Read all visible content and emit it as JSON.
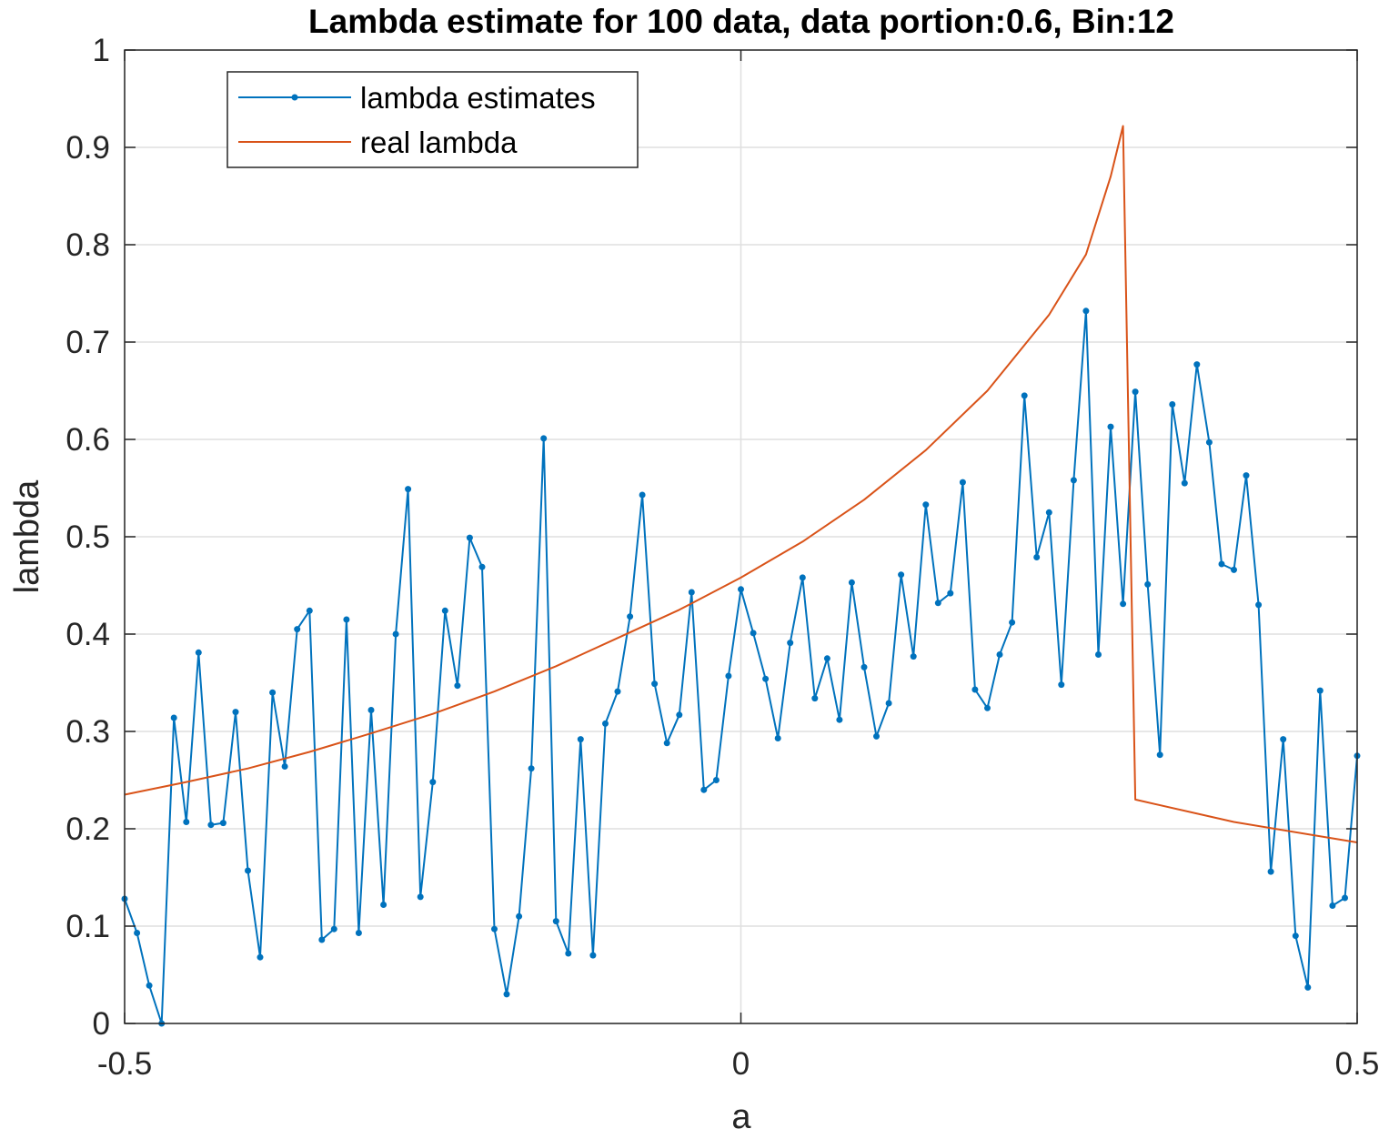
{
  "chart_data": {
    "type": "line",
    "title": "Lambda estimate for 100 data, data portion:0.6, Bin:12",
    "xlabel": "a",
    "ylabel": "lambda",
    "xlim": [
      -0.5,
      0.5
    ],
    "ylim": [
      0,
      1
    ],
    "xticks": [
      -0.5,
      0,
      0.5
    ],
    "xtick_labels": [
      "-0.5",
      "0",
      "0.5"
    ],
    "yticks": [
      0,
      0.1,
      0.2,
      0.3,
      0.4,
      0.5,
      0.6,
      0.7,
      0.8,
      0.9,
      1
    ],
    "ytick_labels": [
      "0",
      "0.1",
      "0.2",
      "0.3",
      "0.4",
      "0.5",
      "0.6",
      "0.7",
      "0.8",
      "0.9",
      "1"
    ],
    "grid": true,
    "legend_position": "top-left",
    "series": [
      {
        "name": "lambda estimates",
        "color": "#0072BD",
        "marker": "dot",
        "points": [
          [
            -0.5,
            0.128
          ],
          [
            -0.49,
            0.093
          ],
          [
            -0.48,
            0.039
          ],
          [
            -0.47,
            0.0
          ],
          [
            -0.46,
            0.314
          ],
          [
            -0.45,
            0.207
          ],
          [
            -0.44,
            0.381
          ],
          [
            -0.43,
            0.204
          ],
          [
            -0.42,
            0.206
          ],
          [
            -0.41,
            0.32
          ],
          [
            -0.4,
            0.157
          ],
          [
            -0.39,
            0.068
          ],
          [
            -0.38,
            0.34
          ],
          [
            -0.37,
            0.264
          ],
          [
            -0.36,
            0.405
          ],
          [
            -0.35,
            0.424
          ],
          [
            -0.34,
            0.086
          ],
          [
            -0.33,
            0.097
          ],
          [
            -0.32,
            0.415
          ],
          [
            -0.31,
            0.093
          ],
          [
            -0.3,
            0.322
          ],
          [
            -0.29,
            0.122
          ],
          [
            -0.28,
            0.4
          ],
          [
            -0.27,
            0.549
          ],
          [
            -0.26,
            0.13
          ],
          [
            -0.25,
            0.248
          ],
          [
            -0.24,
            0.424
          ],
          [
            -0.23,
            0.347
          ],
          [
            -0.22,
            0.499
          ],
          [
            -0.21,
            0.469
          ],
          [
            -0.2,
            0.097
          ],
          [
            -0.19,
            0.03
          ],
          [
            -0.18,
            0.11
          ],
          [
            -0.17,
            0.262
          ],
          [
            -0.16,
            0.601
          ],
          [
            -0.15,
            0.105
          ],
          [
            -0.14,
            0.072
          ],
          [
            -0.13,
            0.292
          ],
          [
            -0.12,
            0.07
          ],
          [
            -0.11,
            0.308
          ],
          [
            -0.1,
            0.341
          ],
          [
            -0.09,
            0.418
          ],
          [
            -0.08,
            0.543
          ],
          [
            -0.07,
            0.349
          ],
          [
            -0.06,
            0.288
          ],
          [
            -0.05,
            0.317
          ],
          [
            -0.04,
            0.443
          ],
          [
            -0.03,
            0.24
          ],
          [
            -0.02,
            0.25
          ],
          [
            -0.01,
            0.357
          ],
          [
            0.0,
            0.446
          ],
          [
            0.01,
            0.401
          ],
          [
            0.02,
            0.354
          ],
          [
            0.03,
            0.293
          ],
          [
            0.04,
            0.391
          ],
          [
            0.05,
            0.458
          ],
          [
            0.06,
            0.334
          ],
          [
            0.07,
            0.375
          ],
          [
            0.08,
            0.312
          ],
          [
            0.09,
            0.453
          ],
          [
            0.1,
            0.366
          ],
          [
            0.11,
            0.295
          ],
          [
            0.12,
            0.329
          ],
          [
            0.13,
            0.461
          ],
          [
            0.14,
            0.377
          ],
          [
            0.15,
            0.533
          ],
          [
            0.16,
            0.432
          ],
          [
            0.17,
            0.442
          ],
          [
            0.18,
            0.556
          ],
          [
            0.19,
            0.343
          ],
          [
            0.2,
            0.324
          ],
          [
            0.21,
            0.379
          ],
          [
            0.22,
            0.412
          ],
          [
            0.23,
            0.645
          ],
          [
            0.24,
            0.479
          ],
          [
            0.25,
            0.525
          ],
          [
            0.26,
            0.348
          ],
          [
            0.27,
            0.558
          ],
          [
            0.28,
            0.732
          ],
          [
            0.29,
            0.379
          ],
          [
            0.3,
            0.613
          ],
          [
            0.31,
            0.431
          ],
          [
            0.32,
            0.649
          ],
          [
            0.33,
            0.451
          ],
          [
            0.34,
            0.276
          ],
          [
            0.35,
            0.636
          ],
          [
            0.36,
            0.555
          ],
          [
            0.37,
            0.677
          ],
          [
            0.38,
            0.597
          ],
          [
            0.39,
            0.472
          ],
          [
            0.4,
            0.466
          ],
          [
            0.41,
            0.563
          ],
          [
            0.42,
            0.43
          ],
          [
            0.43,
            0.156
          ],
          [
            0.44,
            0.292
          ],
          [
            0.45,
            0.09
          ],
          [
            0.46,
            0.037
          ],
          [
            0.47,
            0.342
          ],
          [
            0.48,
            0.121
          ],
          [
            0.49,
            0.129
          ],
          [
            0.5,
            0.275
          ]
        ]
      },
      {
        "name": "real lambda",
        "color": "#D95319",
        "marker": "none",
        "points": [
          [
            -0.5,
            0.235
          ],
          [
            -0.45,
            0.248
          ],
          [
            -0.4,
            0.262
          ],
          [
            -0.35,
            0.279
          ],
          [
            -0.3,
            0.298
          ],
          [
            -0.25,
            0.318
          ],
          [
            -0.2,
            0.341
          ],
          [
            -0.15,
            0.367
          ],
          [
            -0.1,
            0.396
          ],
          [
            -0.05,
            0.425
          ],
          [
            0.0,
            0.458
          ],
          [
            0.05,
            0.495
          ],
          [
            0.1,
            0.538
          ],
          [
            0.15,
            0.589
          ],
          [
            0.2,
            0.65
          ],
          [
            0.25,
            0.728
          ],
          [
            0.28,
            0.79
          ],
          [
            0.3,
            0.87
          ],
          [
            0.31,
            0.922
          ],
          [
            0.32,
            0.23
          ],
          [
            0.4,
            0.207
          ],
          [
            0.5,
            0.186
          ]
        ]
      }
    ]
  }
}
